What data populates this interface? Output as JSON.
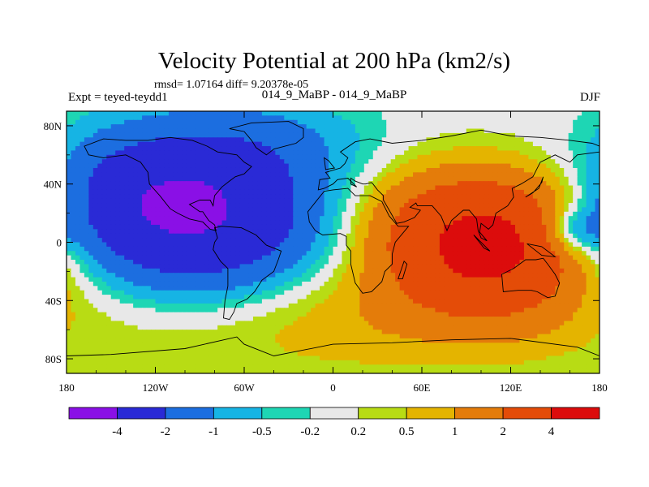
{
  "chart_data": {
    "type": "heatmap",
    "title": "Velocity Potential at 200 hPa (km2/s)",
    "stats_label": "rmsd= 1.07164 diff= 9.20378e-05",
    "left_label": "Expt = teyed-teydd1",
    "center_label": "014_9_MaBP - 014_9_MaBP",
    "right_label": "DJF",
    "x_ticks": [
      "180",
      "120W",
      "60W",
      "0",
      "60E",
      "120E",
      "180"
    ],
    "x_tick_values": [
      -180,
      -120,
      -60,
      0,
      60,
      120,
      180
    ],
    "y_ticks": [
      "80N",
      "40N",
      "0",
      "40S",
      "80S"
    ],
    "y_tick_values": [
      80,
      40,
      0,
      -40,
      -80
    ],
    "xlim": [
      -180,
      180
    ],
    "ylim": [
      -90,
      90
    ],
    "colorbar": {
      "levels": [
        "-4",
        "-2",
        "-1",
        "-0.5",
        "-0.2",
        "0.2",
        "0.5",
        "1",
        "2",
        "4"
      ],
      "colors": [
        "#8a10e6",
        "#2a2ad6",
        "#1c6ee0",
        "#16b4e4",
        "#1ed6b4",
        "#e8e8e8",
        "#b8dc14",
        "#e4b400",
        "#e47c0a",
        "#e44c08",
        "#dc0c0c"
      ]
    },
    "field_anomalies": [
      {
        "lon": -90,
        "lat": 15,
        "sx": 58,
        "sy": 38,
        "amp": -3.8
      },
      {
        "lon": -110,
        "lat": 45,
        "sx": 45,
        "sy": 30,
        "amp": -0.9
      },
      {
        "lon": -150,
        "lat": 30,
        "sx": 30,
        "sy": 30,
        "amp": -0.7
      },
      {
        "lon": -40,
        "lat": 70,
        "sx": 40,
        "sy": 22,
        "amp": -0.6
      },
      {
        "lon": 105,
        "lat": -5,
        "sx": 45,
        "sy": 30,
        "amp": 4.2
      },
      {
        "lon": 90,
        "lat": 25,
        "sx": 55,
        "sy": 25,
        "amp": 1.0
      },
      {
        "lon": 40,
        "lat": 10,
        "sx": 25,
        "sy": 30,
        "amp": 0.4
      },
      {
        "lon": 0,
        "lat": -50,
        "sx": 170,
        "sy": 30,
        "amp": 0.9
      },
      {
        "lon": 162,
        "lat": 8,
        "sx": 16,
        "sy": 12,
        "amp": -1.7
      },
      {
        "lon": 20,
        "lat": 60,
        "sx": 30,
        "sy": 25,
        "amp": -0.2
      }
    ],
    "continents": [
      [
        [
          -168,
          66
        ],
        [
          -165,
          60
        ],
        [
          -155,
          58
        ],
        [
          -140,
          60
        ],
        [
          -130,
          55
        ],
        [
          -125,
          48
        ],
        [
          -124,
          40
        ],
        [
          -117,
          32
        ],
        [
          -110,
          23
        ],
        [
          -105,
          20
        ],
        [
          -97,
          16
        ],
        [
          -88,
          14
        ],
        [
          -83,
          9
        ],
        [
          -79,
          8
        ],
        [
          -80,
          12
        ],
        [
          -84,
          15
        ],
        [
          -88,
          21
        ],
        [
          -90,
          21
        ],
        [
          -97,
          26
        ],
        [
          -90,
          29
        ],
        [
          -83,
          29
        ],
        [
          -81,
          25
        ],
        [
          -80,
          32
        ],
        [
          -75,
          38
        ],
        [
          -70,
          42
        ],
        [
          -66,
          45
        ],
        [
          -60,
          47
        ],
        [
          -55,
          52
        ],
        [
          -60,
          55
        ],
        [
          -65,
          60
        ],
        [
          -78,
          62
        ],
        [
          -85,
          66
        ],
        [
          -95,
          70
        ],
        [
          -110,
          72
        ],
        [
          -125,
          70
        ],
        [
          -140,
          70
        ],
        [
          -155,
          71
        ],
        [
          -168,
          66
        ]
      ],
      [
        [
          -55,
          82
        ],
        [
          -30,
          83
        ],
        [
          -20,
          78
        ],
        [
          -20,
          72
        ],
        [
          -25,
          68
        ],
        [
          -40,
          64
        ],
        [
          -45,
          60
        ],
        [
          -52,
          65
        ],
        [
          -55,
          70
        ],
        [
          -60,
          76
        ],
        [
          -70,
          78
        ],
        [
          -55,
          82
        ]
      ],
      [
        [
          -80,
          10
        ],
        [
          -75,
          11
        ],
        [
          -62,
          10
        ],
        [
          -52,
          5
        ],
        [
          -45,
          -2
        ],
        [
          -35,
          -6
        ],
        [
          -37,
          -12
        ],
        [
          -40,
          -20
        ],
        [
          -48,
          -26
        ],
        [
          -53,
          -34
        ],
        [
          -58,
          -39
        ],
        [
          -65,
          -42
        ],
        [
          -67,
          -48
        ],
        [
          -70,
          -53
        ],
        [
          -74,
          -52
        ],
        [
          -73,
          -40
        ],
        [
          -71,
          -30
        ],
        [
          -71,
          -18
        ],
        [
          -76,
          -13
        ],
        [
          -81,
          -5
        ],
        [
          -80,
          0
        ],
        [
          -78,
          3
        ],
        [
          -80,
          10
        ]
      ],
      [
        [
          -17,
          21
        ],
        [
          -16,
          14
        ],
        [
          -12,
          8
        ],
        [
          -7,
          5
        ],
        [
          5,
          6
        ],
        [
          9,
          4
        ],
        [
          9,
          -2
        ],
        [
          12,
          -6
        ],
        [
          12,
          -15
        ],
        [
          15,
          -28
        ],
        [
          20,
          -35
        ],
        [
          26,
          -34
        ],
        [
          33,
          -27
        ],
        [
          35,
          -20
        ],
        [
          40,
          -15
        ],
        [
          40,
          -8
        ],
        [
          42,
          0
        ],
        [
          51,
          11
        ],
        [
          44,
          11
        ],
        [
          38,
          18
        ],
        [
          33,
          28
        ],
        [
          25,
          32
        ],
        [
          15,
          32
        ],
        [
          10,
          37
        ],
        [
          0,
          36
        ],
        [
          -6,
          35
        ],
        [
          -10,
          30
        ],
        [
          -17,
          21
        ]
      ],
      [
        [
          -10,
          36
        ],
        [
          -9,
          43
        ],
        [
          -2,
          44
        ],
        [
          -5,
          48
        ],
        [
          5,
          51
        ],
        [
          8,
          54
        ],
        [
          10,
          58
        ],
        [
          5,
          62
        ],
        [
          15,
          69
        ],
        [
          25,
          71
        ],
        [
          40,
          68
        ],
        [
          60,
          70
        ],
        [
          80,
          73
        ],
        [
          100,
          77
        ],
        [
          120,
          73
        ],
        [
          140,
          72
        ],
        [
          160,
          70
        ],
        [
          175,
          68
        ],
        [
          180,
          66
        ],
        [
          180,
          62
        ],
        [
          165,
          60
        ],
        [
          160,
          55
        ],
        [
          150,
          60
        ],
        [
          140,
          55
        ],
        [
          135,
          45
        ],
        [
          127,
          40
        ],
        [
          121,
          37
        ],
        [
          122,
          31
        ],
        [
          118,
          25
        ],
        [
          110,
          20
        ],
        [
          108,
          12
        ],
        [
          105,
          9
        ],
        [
          100,
          13
        ],
        [
          99,
          7
        ],
        [
          104,
          1
        ],
        [
          100,
          3
        ],
        [
          98,
          8
        ],
        [
          97,
          16
        ],
        [
          92,
          22
        ],
        [
          88,
          22
        ],
        [
          80,
          15
        ],
        [
          77,
          8
        ],
        [
          73,
          18
        ],
        [
          67,
          25
        ],
        [
          57,
          25
        ],
        [
          56,
          27
        ],
        [
          52,
          24
        ],
        [
          59,
          22
        ],
        [
          55,
          17
        ],
        [
          48,
          14
        ],
        [
          43,
          13
        ],
        [
          38,
          22
        ],
        [
          34,
          29
        ],
        [
          34,
          32
        ],
        [
          30,
          36
        ],
        [
          27,
          40
        ],
        [
          26,
          41
        ],
        [
          22,
          40
        ],
        [
          20,
          40
        ],
        [
          15,
          42
        ],
        [
          12,
          44
        ],
        [
          12,
          40
        ],
        [
          16,
          38
        ],
        [
          10,
          44
        ],
        [
          3,
          43
        ],
        [
          0,
          40
        ],
        [
          -6,
          37
        ],
        [
          -10,
          36
        ]
      ],
      [
        [
          114,
          -22
        ],
        [
          122,
          -18
        ],
        [
          130,
          -12
        ],
        [
          137,
          -12
        ],
        [
          142,
          -11
        ],
        [
          145,
          -15
        ],
        [
          150,
          -22
        ],
        [
          153,
          -28
        ],
        [
          150,
          -37
        ],
        [
          145,
          -38
        ],
        [
          138,
          -34
        ],
        [
          134,
          -33
        ],
        [
          125,
          -33
        ],
        [
          115,
          -34
        ],
        [
          114,
          -22
        ]
      ],
      [
        [
          44,
          -25
        ],
        [
          48,
          -13
        ],
        [
          50,
          -15
        ],
        [
          47,
          -25
        ],
        [
          44,
          -25
        ]
      ],
      [
        [
          -5,
          50
        ],
        [
          1,
          51
        ],
        [
          -3,
          56
        ],
        [
          -6,
          58
        ],
        [
          -5,
          50
        ]
      ],
      [
        [
          130,
          31
        ],
        [
          135,
          34
        ],
        [
          141,
          41
        ],
        [
          142,
          45
        ],
        [
          139,
          37
        ],
        [
          130,
          31
        ]
      ],
      [
        [
          95,
          5
        ],
        [
          106,
          -6
        ],
        [
          102,
          -4
        ],
        [
          95,
          5
        ]
      ],
      [
        [
          131,
          -1
        ],
        [
          141,
          -3
        ],
        [
          150,
          -10
        ],
        [
          141,
          -9
        ],
        [
          131,
          -1
        ]
      ],
      [
        [
          -180,
          -78
        ],
        [
          -150,
          -77
        ],
        [
          -100,
          -73
        ],
        [
          -65,
          -65
        ],
        [
          -60,
          -70
        ],
        [
          -40,
          -78
        ],
        [
          0,
          -70
        ],
        [
          40,
          -69
        ],
        [
          80,
          -67
        ],
        [
          120,
          -66
        ],
        [
          165,
          -72
        ],
        [
          180,
          -78
        ],
        [
          180,
          -90
        ],
        [
          -180,
          -90
        ],
        [
          -180,
          -78
        ]
      ]
    ]
  }
}
